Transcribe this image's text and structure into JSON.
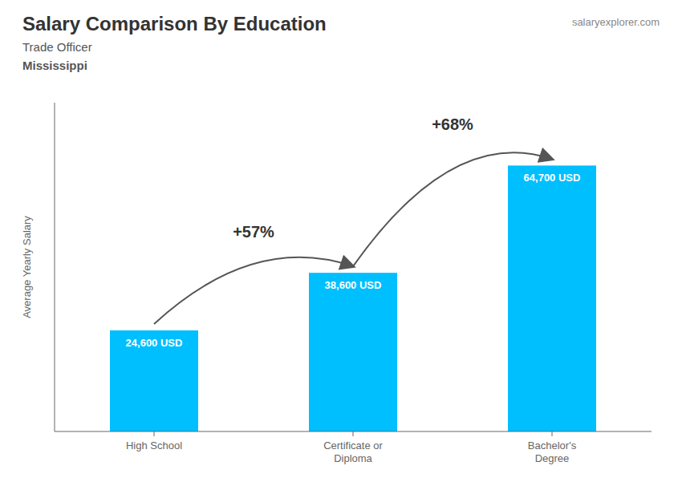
{
  "chart_data": {
    "type": "bar",
    "title": "Salary Comparison By Education",
    "subtitle": [
      "Trade Officer",
      "Mississippi"
    ],
    "watermark": "salaryexplorer.com",
    "ylabel": "Average Yearly Salary",
    "categories": [
      "High School",
      "Certificate or\nDiploma",
      "Bachelor's\nDegree"
    ],
    "values": [
      24600,
      38600,
      64700
    ],
    "value_labels": [
      "24,600 USD",
      "38,600 USD",
      "64,700 USD"
    ],
    "data_labels": true,
    "annotations": [
      "+57%",
      "+68%"
    ],
    "color": "#00BFFF",
    "ylim": [
      0,
      80000
    ],
    "tick_labels": "x",
    "grid": false
  }
}
